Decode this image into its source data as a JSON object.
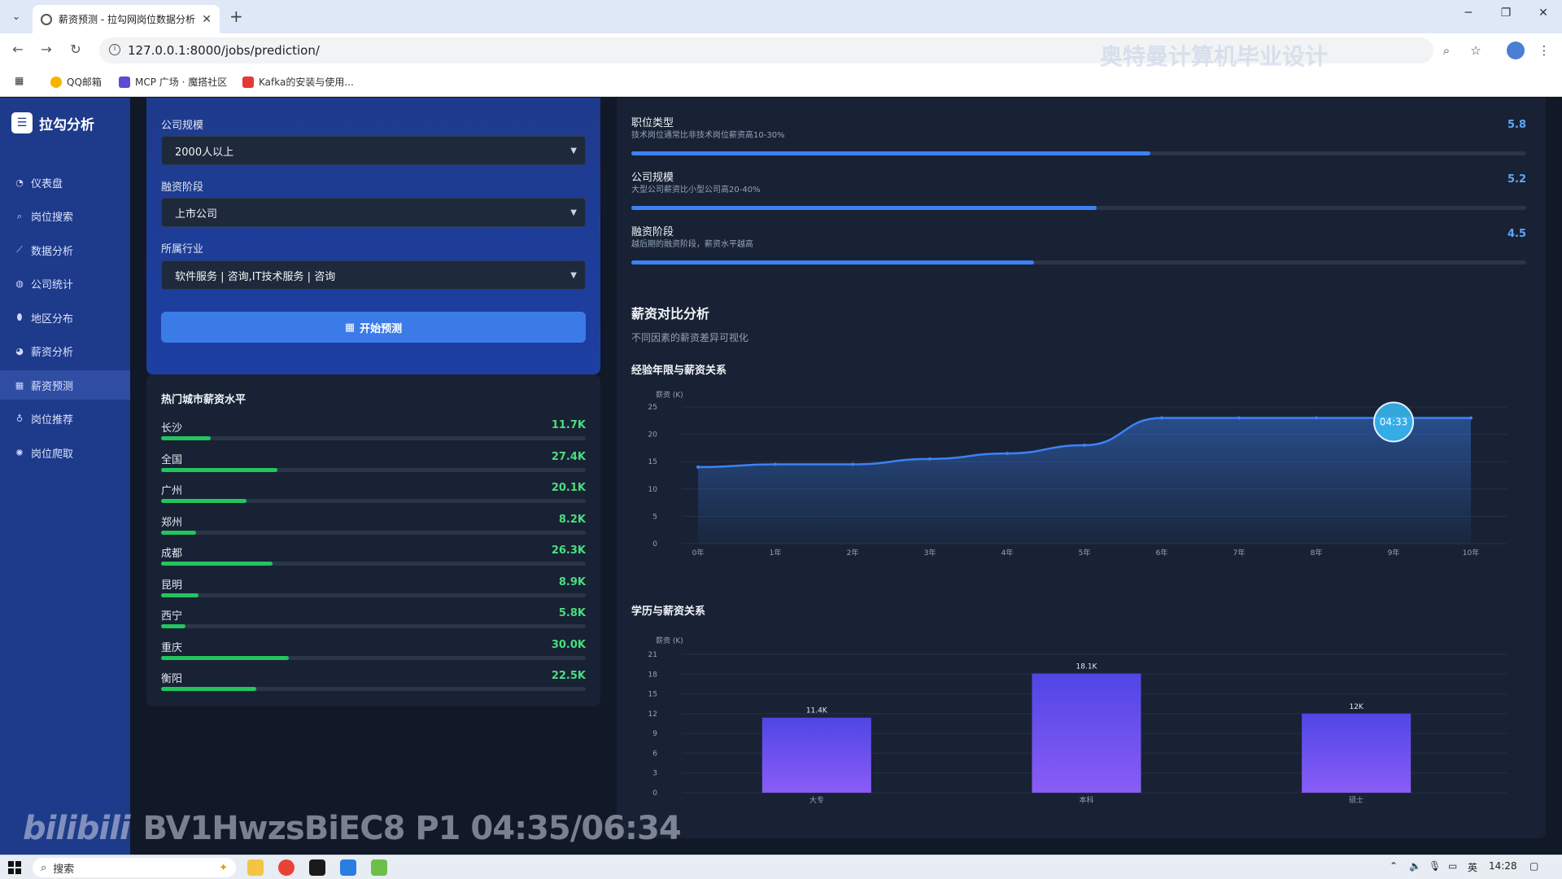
{
  "browser": {
    "tab_title": "薪资预测 - 拉勾网岗位数据分析",
    "url": "127.0.0.1:8000/jobs/prediction/",
    "watermark": "奥特曼计算机毕业设计",
    "bookmarks": [
      {
        "label": "QQ邮箱",
        "color": "#f7b500"
      },
      {
        "label": "MCP 广场 · 魔搭社区",
        "color": "#5b4bd6"
      },
      {
        "label": "Kafka的安装与使用...",
        "color": "#e53935"
      }
    ]
  },
  "sidebar": {
    "brand": "拉勾分析",
    "items": [
      {
        "label": "仪表盘",
        "icon": "dashboard-icon",
        "glyph": "◔"
      },
      {
        "label": "岗位搜索",
        "icon": "search-icon",
        "glyph": "⌕"
      },
      {
        "label": "数据分析",
        "icon": "line-chart-icon",
        "glyph": "⟋"
      },
      {
        "label": "公司统计",
        "icon": "globe-icon",
        "glyph": "◍"
      },
      {
        "label": "地区分布",
        "icon": "map-pin-icon",
        "glyph": "⬮"
      },
      {
        "label": "薪资分析",
        "icon": "pie-chart-icon",
        "glyph": "◕"
      },
      {
        "label": "薪资预测",
        "icon": "calculator-icon",
        "glyph": "▦"
      },
      {
        "label": "岗位推荐",
        "icon": "lightbulb-icon",
        "glyph": "♁"
      },
      {
        "label": "岗位爬取",
        "icon": "spider-icon",
        "glyph": "✺"
      }
    ],
    "active_index": 6
  },
  "form": {
    "company_size_label": "公司规模",
    "company_size_value": "2000人以上",
    "funding_label": "融资阶段",
    "funding_value": "上市公司",
    "industry_label": "所属行业",
    "industry_value": "软件服务 | 咨询,IT技术服务 | 咨询",
    "predict_button": "开始预测"
  },
  "hot_cities": {
    "title": "热门城市薪资水平",
    "max_k": 100,
    "items": [
      {
        "name": "长沙",
        "value": "11.7K",
        "v": 11.7
      },
      {
        "name": "全国",
        "value": "27.4K",
        "v": 27.4
      },
      {
        "name": "广州",
        "value": "20.1K",
        "v": 20.1
      },
      {
        "name": "郑州",
        "value": "8.2K",
        "v": 8.2
      },
      {
        "name": "成都",
        "value": "26.3K",
        "v": 26.3
      },
      {
        "name": "昆明",
        "value": "8.9K",
        "v": 8.9
      },
      {
        "name": "西宁",
        "value": "5.8K",
        "v": 5.8
      },
      {
        "name": "重庆",
        "value": "30.0K",
        "v": 30.0
      },
      {
        "name": "衡阳",
        "value": "22.5K",
        "v": 22.5
      }
    ]
  },
  "factors": {
    "max": 10,
    "items": [
      {
        "name": "职位类型",
        "desc": "技术岗位通常比非技术岗位薪资高10-30%",
        "value": "5.8",
        "v": 5.8
      },
      {
        "name": "公司规模",
        "desc": "大型公司薪资比小型公司高20-40%",
        "value": "5.2",
        "v": 5.2
      },
      {
        "name": "融资阶段",
        "desc": "越后期的融资阶段，薪资水平越高",
        "value": "4.5",
        "v": 4.5
      }
    ]
  },
  "compare": {
    "title": "薪资对比分析",
    "subtitle": "不同因素的薪资差异可视化"
  },
  "chart_data": [
    {
      "type": "area",
      "title": "经验年限与薪资关系",
      "ylabel": "薪资 (K)",
      "x": [
        "0年",
        "1年",
        "2年",
        "3年",
        "4年",
        "5年",
        "6年",
        "7年",
        "8年",
        "9年",
        "10年"
      ],
      "values": [
        14,
        14.5,
        14.5,
        15.5,
        16.5,
        18,
        23,
        23,
        23,
        23,
        23
      ],
      "ylim": [
        0,
        25
      ],
      "yticks": [
        0,
        5,
        10,
        15,
        20,
        25
      ],
      "color": "#3b82f6",
      "tooltip": "04:33"
    },
    {
      "type": "bar",
      "title": "学历与薪资关系",
      "ylabel": "薪资 (K)",
      "categories": [
        "大专",
        "本科",
        "硕士"
      ],
      "values": [
        11.4,
        18.1,
        12
      ],
      "labels": [
        "11.4K",
        "18.1K",
        "12K"
      ],
      "ylim": [
        0,
        21
      ],
      "yticks": [
        0,
        3,
        6,
        9,
        12,
        15,
        18,
        21
      ],
      "color": "#7c3aed"
    }
  ],
  "video_watermark": {
    "logo": "bilibili",
    "text": "BV1HwzsBiEC8 P1 04:35/06:34"
  },
  "taskbar": {
    "search_placeholder": "搜索",
    "ime": "英",
    "time": "14:28"
  }
}
